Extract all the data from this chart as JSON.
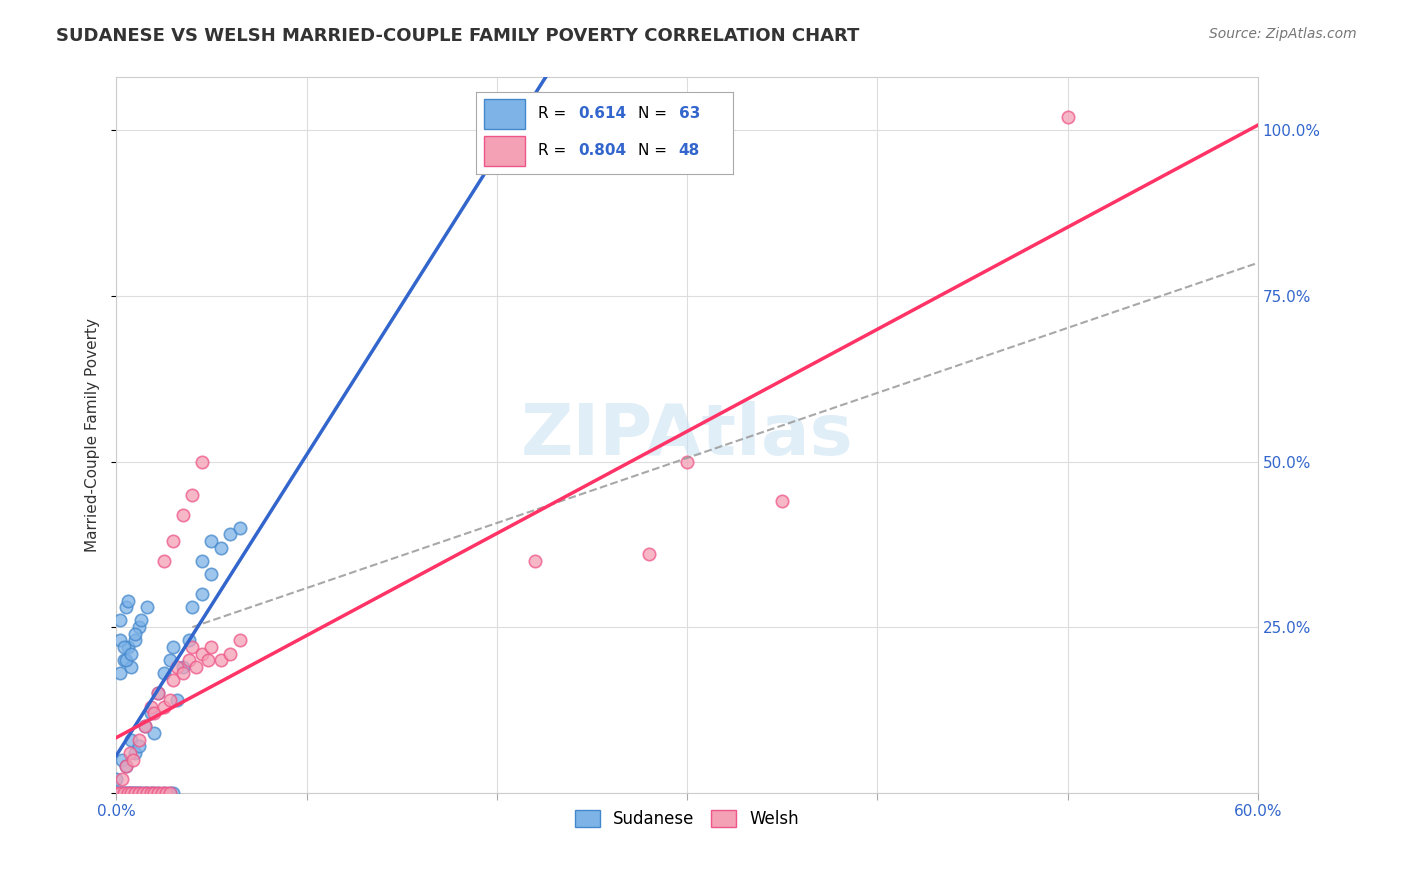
{
  "title": "SUDANESE VS WELSH MARRIED-COUPLE FAMILY POVERTY CORRELATION CHART",
  "source": "Source: ZipAtlas.com",
  "ylabel": "Married-Couple Family Poverty",
  "xlim": [
    0,
    0.6
  ],
  "ylim": [
    0,
    1.08
  ],
  "sudanese_color": "#7EB3E8",
  "sudanese_edge": "#4488CC",
  "welsh_color": "#F4A0B5",
  "welsh_edge": "#EE5588",
  "sudanese_R": 0.614,
  "sudanese_N": 63,
  "welsh_R": 0.804,
  "welsh_N": 48,
  "blue_line_color": "#3366CC",
  "pink_line_color": "#FF3366",
  "dashed_line_color": "#999999",
  "watermark": "ZIPAtlas",
  "legend_text_color": "#3366CC",
  "sudanese_points_x": [
    0.0,
    0.001,
    0.002,
    0.003,
    0.004,
    0.005,
    0.006,
    0.007,
    0.008,
    0.009,
    0.01,
    0.011,
    0.012,
    0.013,
    0.015,
    0.016,
    0.018,
    0.02,
    0.022,
    0.025,
    0.028,
    0.03,
    0.0,
    0.003,
    0.005,
    0.008,
    0.01,
    0.012,
    0.015,
    0.018,
    0.02,
    0.022,
    0.025,
    0.028,
    0.03,
    0.032,
    0.035,
    0.038,
    0.04,
    0.045,
    0.05,
    0.002,
    0.004,
    0.006,
    0.008,
    0.01,
    0.012,
    0.002,
    0.004,
    0.005,
    0.008,
    0.01,
    0.013,
    0.016,
    0.002,
    0.005,
    0.006,
    0.045,
    0.05,
    0.055,
    0.06,
    0.065,
    0.002
  ],
  "sudanese_points_y": [
    0.0,
    0.0,
    0.0,
    0.0,
    0.0,
    0.0,
    0.0,
    0.0,
    0.0,
    0.0,
    0.0,
    0.0,
    0.0,
    0.0,
    0.0,
    0.0,
    0.0,
    0.0,
    0.0,
    0.0,
    0.0,
    0.0,
    0.02,
    0.05,
    0.04,
    0.08,
    0.06,
    0.07,
    0.1,
    0.12,
    0.09,
    0.15,
    0.18,
    0.2,
    0.22,
    0.14,
    0.19,
    0.23,
    0.28,
    0.3,
    0.33,
    0.18,
    0.2,
    0.22,
    0.19,
    0.23,
    0.25,
    0.23,
    0.22,
    0.2,
    0.21,
    0.24,
    0.26,
    0.28,
    0.26,
    0.28,
    0.29,
    0.35,
    0.38,
    0.37,
    0.39,
    0.4,
    0.0
  ],
  "welsh_points_x": [
    0.0,
    0.002,
    0.004,
    0.006,
    0.008,
    0.01,
    0.012,
    0.014,
    0.016,
    0.018,
    0.02,
    0.022,
    0.024,
    0.026,
    0.028,
    0.003,
    0.005,
    0.007,
    0.009,
    0.012,
    0.015,
    0.018,
    0.02,
    0.022,
    0.025,
    0.028,
    0.03,
    0.032,
    0.035,
    0.038,
    0.04,
    0.042,
    0.045,
    0.048,
    0.05,
    0.055,
    0.06,
    0.065,
    0.025,
    0.03,
    0.035,
    0.04,
    0.045,
    0.3,
    0.35,
    0.5,
    0.28,
    0.22
  ],
  "welsh_points_y": [
    0.0,
    0.0,
    0.0,
    0.0,
    0.0,
    0.0,
    0.0,
    0.0,
    0.0,
    0.0,
    0.0,
    0.0,
    0.0,
    0.0,
    0.0,
    0.02,
    0.04,
    0.06,
    0.05,
    0.08,
    0.1,
    0.13,
    0.12,
    0.15,
    0.13,
    0.14,
    0.17,
    0.19,
    0.18,
    0.2,
    0.22,
    0.19,
    0.21,
    0.2,
    0.22,
    0.2,
    0.21,
    0.23,
    0.35,
    0.38,
    0.42,
    0.45,
    0.5,
    0.5,
    0.44,
    1.02,
    0.36,
    0.35
  ]
}
